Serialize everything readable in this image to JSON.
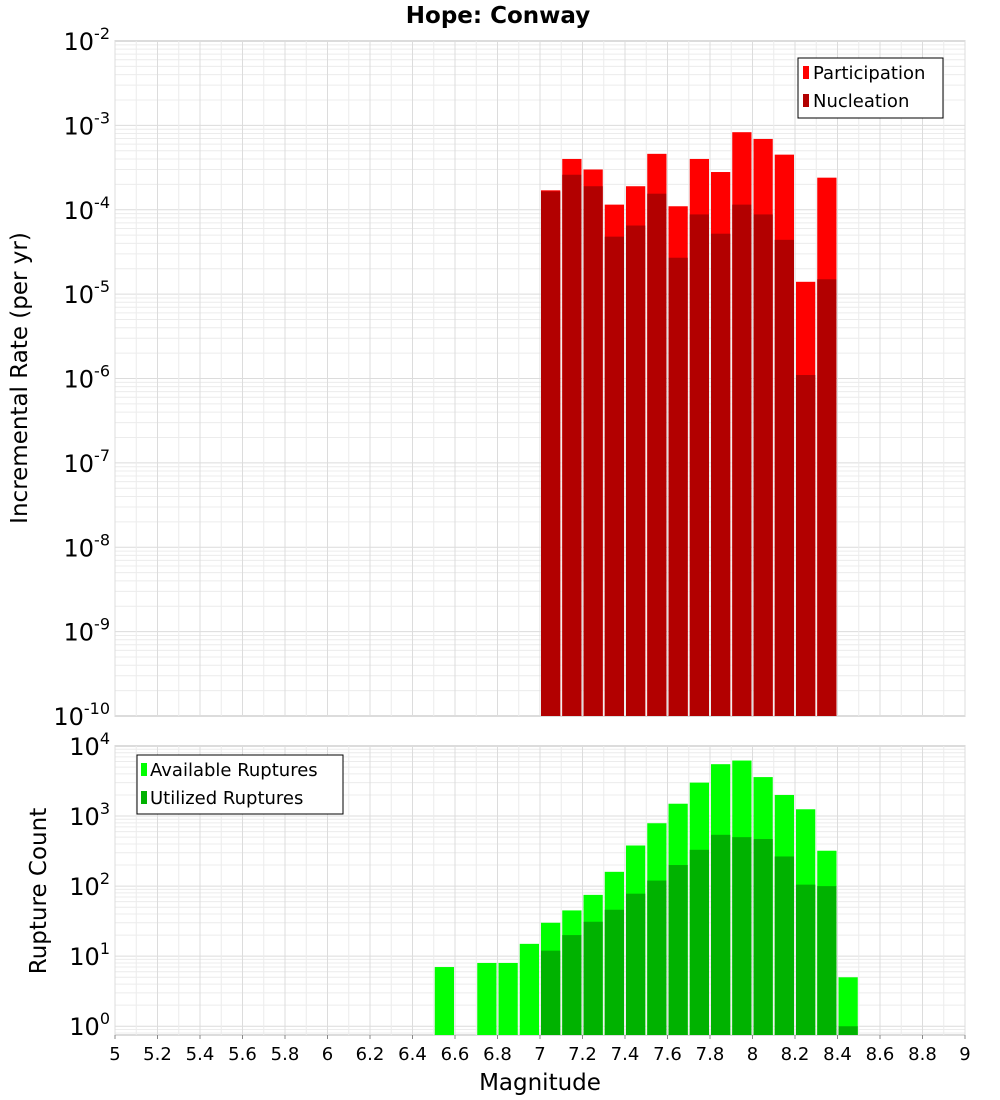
{
  "chart_data": [
    {
      "type": "bar",
      "title": "Hope: Conway",
      "ylabel": "Incremental Rate (per yr)",
      "xlabel": "",
      "ylog": true,
      "ylim": [
        1e-10,
        0.01
      ],
      "xlim": [
        5,
        9
      ],
      "grid": true,
      "legend_position": "top-right",
      "x": [
        7.05,
        7.15,
        7.25,
        7.35,
        7.45,
        7.55,
        7.65,
        7.75,
        7.85,
        7.95,
        8.05,
        8.15,
        8.25,
        8.35
      ],
      "series": [
        {
          "name": "Participation",
          "color": "#ff0000",
          "values": [
            0.00017,
            0.0004,
            0.0003,
            0.000115,
            0.00019,
            0.00046,
            0.00011,
            0.0004,
            0.00028,
            0.00083,
            0.00069,
            0.00045,
            1.4e-05,
            0.00024
          ]
        },
        {
          "name": "Nucleation",
          "color": "#b20000",
          "values": [
            0.000165,
            0.00026,
            0.00019,
            4.8e-05,
            6.5e-05,
            0.000155,
            2.7e-05,
            8.8e-05,
            5.2e-05,
            0.000115,
            8.8e-05,
            4.4e-05,
            1.1e-06,
            1.5e-05
          ]
        }
      ]
    },
    {
      "type": "bar",
      "title": "",
      "ylabel": "Rupture Count",
      "xlabel": "Magnitude",
      "ylog": true,
      "ylim": [
        0.75,
        10000
      ],
      "xlim": [
        5,
        9
      ],
      "grid": true,
      "legend_position": "top-left",
      "x": [
        6.55,
        6.75,
        6.85,
        6.95,
        7.05,
        7.15,
        7.25,
        7.35,
        7.45,
        7.55,
        7.65,
        7.75,
        7.85,
        7.95,
        8.05,
        8.15,
        8.25,
        8.35,
        8.45
      ],
      "series": [
        {
          "name": "Available Ruptures",
          "color": "#00ff00",
          "values": [
            7,
            8,
            8,
            15,
            30,
            45,
            75,
            160,
            380,
            790,
            1500,
            3000,
            5500,
            6200,
            3600,
            2000,
            1250,
            320,
            5
          ]
        },
        {
          "name": "Utilized Ruptures",
          "color": "#00b200",
          "values": [
            0,
            0,
            0,
            0,
            12,
            20,
            31,
            46,
            78,
            120,
            200,
            330,
            540,
            500,
            470,
            265,
            105,
            100,
            1
          ]
        }
      ]
    }
  ],
  "x_ticks": [
    "5",
    "5.2",
    "5.4",
    "5.6",
    "5.8",
    "6",
    "6.2",
    "6.4",
    "6.6",
    "6.8",
    "7",
    "7.2",
    "7.4",
    "7.6",
    "7.8",
    "8",
    "8.2",
    "8.4",
    "8.6",
    "8.8",
    "9"
  ],
  "top_y_ticks": [
    {
      "base": "10",
      "exp": "-2"
    },
    {
      "base": "10",
      "exp": "-3"
    },
    {
      "base": "10",
      "exp": "-4"
    },
    {
      "base": "10",
      "exp": "-5"
    },
    {
      "base": "10",
      "exp": "-6"
    },
    {
      "base": "10",
      "exp": "-7"
    },
    {
      "base": "10",
      "exp": "-8"
    },
    {
      "base": "10",
      "exp": "-9"
    },
    {
      "base": "10",
      "exp": "-10"
    }
  ],
  "bottom_y_ticks": [
    {
      "base": "10",
      "exp": "4"
    },
    {
      "base": "10",
      "exp": "3"
    },
    {
      "base": "10",
      "exp": "2"
    },
    {
      "base": "10",
      "exp": "1"
    },
    {
      "base": "10",
      "exp": "0"
    }
  ]
}
